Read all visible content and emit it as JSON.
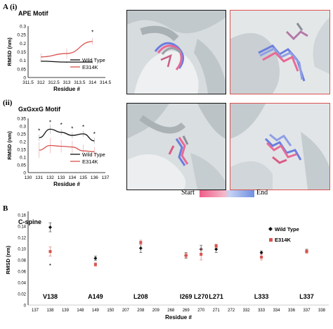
{
  "figure": {
    "panel_A_label": "A (i)",
    "panel_A_ii_label": "(ii)",
    "panel_B_label": "B",
    "gradient": {
      "start_label": "Start",
      "end_label": "End",
      "start_color": "#ef5d8a",
      "end_color": "#6f8fe0"
    },
    "colors": {
      "wild_type": "#111111",
      "e314k": "#d9534f"
    }
  },
  "chart_data": [
    {
      "id": "ape",
      "type": "line",
      "title": "APE Motif",
      "xlabel": "Residue #",
      "ylabel": "RMSD (nm)",
      "x": [
        312,
        313,
        314
      ],
      "xlim": [
        311.5,
        314.5
      ],
      "xticks": [
        "311.5",
        "312",
        "312.5",
        "313",
        "313.5",
        "314",
        "314.5"
      ],
      "xtick_values": [
        311.5,
        312,
        312.5,
        313,
        313.5,
        314,
        314.5
      ],
      "ylim": [
        0,
        0.3
      ],
      "yticks": [
        "0",
        "0.05",
        "0.1",
        "0.15",
        "0.2",
        "0.25",
        "0.3"
      ],
      "ytick_values": [
        0,
        0.05,
        0.1,
        0.15,
        0.2,
        0.25,
        0.3
      ],
      "series": [
        {
          "name": "Wild Type",
          "values": [
            0.095,
            0.09,
            0.09
          ],
          "errors": [
            0.005,
            0.005,
            0.01
          ]
        },
        {
          "name": "E314K",
          "values": [
            0.12,
            0.14,
            0.21
          ],
          "errors": [
            0.02,
            0.03,
            0.02
          ]
        }
      ],
      "annotations": [
        {
          "x": 314,
          "y": 0.265,
          "text": "*"
        }
      ],
      "legend": "right"
    },
    {
      "id": "gxgxxg",
      "type": "line",
      "title": "GxGxxG Motif",
      "xlabel": "Residue #",
      "ylabel": "RMSD (nm)",
      "x": [
        131,
        132,
        133,
        134,
        135,
        136
      ],
      "xlim": [
        130,
        137
      ],
      "xticks": [
        "130",
        "131",
        "132",
        "133",
        "134",
        "135",
        "136",
        "137"
      ],
      "xtick_values": [
        130,
        131,
        132,
        133,
        134,
        135,
        136,
        137
      ],
      "ylim": [
        0,
        0.35
      ],
      "yticks": [
        "0",
        "0.05",
        "0.1",
        "0.15",
        "0.2",
        "0.25",
        "0.3",
        "0.35"
      ],
      "ytick_values": [
        0,
        0.05,
        0.1,
        0.15,
        0.2,
        0.25,
        0.3,
        0.35
      ],
      "series": [
        {
          "name": "Wild Type",
          "values": [
            0.225,
            0.28,
            0.26,
            0.24,
            0.25,
            0.205
          ],
          "errors": [
            0.02,
            0.03,
            0.02,
            0.02,
            0.02,
            0.02
          ]
        },
        {
          "name": "E314K",
          "values": [
            0.145,
            0.175,
            0.17,
            0.165,
            0.14,
            0.135
          ],
          "errors": [
            0.05,
            0.05,
            0.04,
            0.04,
            0.04,
            0.03
          ]
        }
      ],
      "annotations": [
        {
          "x": 131,
          "y": 0.27,
          "text": "*"
        },
        {
          "x": 132,
          "y": 0.325,
          "text": "*"
        },
        {
          "x": 133,
          "y": 0.31,
          "text": "*"
        },
        {
          "x": 134,
          "y": 0.285,
          "text": "*"
        },
        {
          "x": 135,
          "y": 0.295,
          "text": "*"
        },
        {
          "x": 136,
          "y": 0.25,
          "text": "*"
        }
      ],
      "legend": "right"
    },
    {
      "id": "cspine",
      "type": "scatter",
      "title": "C-spine",
      "xlabel": "Residue #",
      "ylabel": "RMSD (nm)",
      "xticks": [
        "137",
        "138",
        "139",
        "148",
        "149",
        "150",
        "207",
        "208",
        "209",
        "268",
        "269",
        "270",
        "271",
        "272",
        "332",
        "333",
        "334",
        "336",
        "337",
        "338"
      ],
      "ylim": [
        0,
        0.16
      ],
      "yticks": [
        "0",
        "0.02",
        "0.04",
        "0.06",
        "0.08",
        "0.10",
        "0.12",
        "0.14",
        "0.16"
      ],
      "ytick_values": [
        0,
        0.02,
        0.04,
        0.06,
        0.08,
        0.1,
        0.12,
        0.14,
        0.16
      ],
      "residue_labels": [
        "V138",
        "A149",
        "L208",
        "I269",
        "L270",
        "L271",
        "L333",
        "L337"
      ],
      "residue_ticks": [
        "138",
        "149",
        "208",
        "269",
        "270",
        "271",
        "333",
        "337"
      ],
      "series": [
        {
          "name": "Wild Type",
          "values": [
            0.138,
            0.083,
            0.101,
            0.088,
            0.099,
            0.099,
            0.093,
            0.096
          ],
          "errors": [
            0.008,
            0.004,
            0.008,
            0.005,
            0.007,
            0.006,
            0.003,
            0.003
          ]
        },
        {
          "name": "E314K",
          "values": [
            0.095,
            0.072,
            0.111,
            0.088,
            0.09,
            0.105,
            0.085,
            0.095
          ],
          "errors": [
            0.008,
            0.003,
            0.004,
            0.004,
            0.01,
            0.003,
            0.005,
            0.003
          ]
        }
      ],
      "annotations": [
        {
          "x": "138",
          "y": 0.07,
          "text": "*"
        }
      ],
      "legend": "top-right"
    }
  ]
}
